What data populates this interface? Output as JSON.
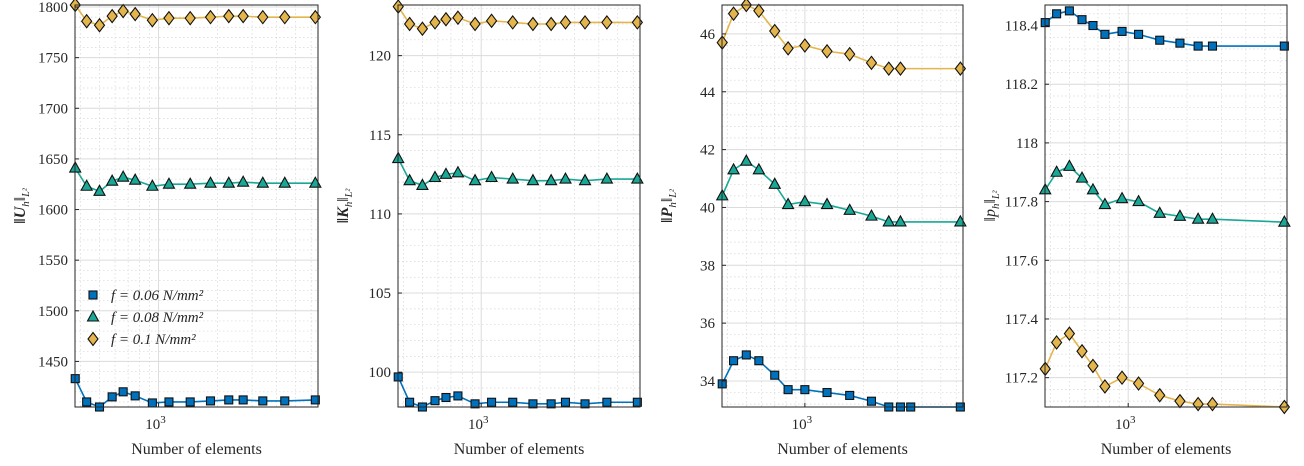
{
  "chart_data": [
    {
      "type": "line",
      "xscale": "log",
      "xlabel": "Number of elements",
      "ylabel": "‖U_h‖_{L²}",
      "ylabel_main": "‖U",
      "ylabel_sub": "h",
      "ylabel_tail": "‖",
      "ylabel_norm": "L²",
      "ylabel_bold": true,
      "xlim": [
        375,
        6500
      ],
      "ylim": [
        1405,
        1802
      ],
      "xticks": [
        {
          "value": 1000,
          "base": "10",
          "exp": "3"
        }
      ],
      "yticks": [
        1450,
        1500,
        1550,
        1600,
        1650,
        1700,
        1750,
        1800
      ],
      "grid": true,
      "legend": {
        "placement": "lower-left"
      },
      "x": [
        376,
        430,
        500,
        580,
        660,
        760,
        930,
        1130,
        1450,
        1840,
        2280,
        2700,
        3400,
        4400,
        6300
      ],
      "series": [
        {
          "name": "f = 0.06 N/mm²",
          "color": "#0072bd",
          "marker": "square",
          "values": [
            1433,
            1410,
            1405,
            1415,
            1420,
            1416,
            1409,
            1410,
            1410,
            1411,
            1412,
            1412,
            1411,
            1411,
            1412
          ]
        },
        {
          "name": "f = 0.08 N/mm²",
          "color": "#1aa896",
          "marker": "triangle",
          "values": [
            1641,
            1623,
            1618,
            1628,
            1632,
            1629,
            1623,
            1625,
            1625,
            1626,
            1626,
            1627,
            1626,
            1626,
            1626
          ]
        },
        {
          "name": "f = 0.1 N/mm²",
          "color": "#e4b54d",
          "marker": "diamond",
          "values": [
            1802,
            1786,
            1782,
            1791,
            1796,
            1793,
            1787,
            1789,
            1789,
            1790,
            1791,
            1791,
            1790,
            1790,
            1790
          ]
        }
      ]
    },
    {
      "type": "line",
      "xscale": "log",
      "xlabel": "Number of elements",
      "ylabel": "‖K_h‖_{L²}",
      "ylabel_main": "‖K",
      "ylabel_sub": "h",
      "ylabel_tail": "‖",
      "ylabel_norm": "L²",
      "ylabel_bold": true,
      "xlim": [
        375,
        6500
      ],
      "ylim": [
        97.8,
        123.2
      ],
      "xticks": [
        {
          "value": 1000,
          "base": "10",
          "exp": "3"
        }
      ],
      "yticks": [
        100,
        105,
        110,
        115,
        120
      ],
      "grid": true,
      "x": [
        376,
        430,
        500,
        580,
        660,
        760,
        930,
        1130,
        1450,
        1840,
        2280,
        2700,
        3400,
        4400,
        6300
      ],
      "series": [
        {
          "name": "f = 0.06 N/mm²",
          "color": "#0072bd",
          "marker": "square",
          "values": [
            99.7,
            98.1,
            97.8,
            98.2,
            98.4,
            98.5,
            98.0,
            98.1,
            98.1,
            98.0,
            98.0,
            98.1,
            98.0,
            98.1,
            98.1
          ]
        },
        {
          "name": "f = 0.08 N/mm²",
          "color": "#1aa896",
          "marker": "triangle",
          "values": [
            113.5,
            112.1,
            111.8,
            112.3,
            112.5,
            112.6,
            112.1,
            112.3,
            112.2,
            112.1,
            112.1,
            112.2,
            112.1,
            112.2,
            112.2
          ]
        },
        {
          "name": "f = 0.1 N/mm²",
          "color": "#e4b54d",
          "marker": "diamond",
          "values": [
            123.1,
            122.0,
            121.7,
            122.1,
            122.3,
            122.4,
            122.0,
            122.2,
            122.1,
            122.0,
            122.0,
            122.1,
            122.1,
            122.1,
            122.1
          ]
        }
      ]
    },
    {
      "type": "line",
      "xscale": "log",
      "xlabel": "Number of elements",
      "ylabel": "‖P_h‖_{L²}",
      "ylabel_main": "‖P",
      "ylabel_sub": "h",
      "ylabel_tail": "‖",
      "ylabel_norm": "L²",
      "ylabel_bold": true,
      "xlim": [
        375,
        6500
      ],
      "ylim": [
        33.1,
        47.0
      ],
      "xticks": [
        {
          "value": 1000,
          "base": "10",
          "exp": "3"
        }
      ],
      "yticks": [
        34,
        36,
        38,
        40,
        42,
        44,
        46
      ],
      "grid": true,
      "x": [
        376,
        430,
        500,
        580,
        700,
        820,
        1000,
        1300,
        1700,
        2200,
        2700,
        3100,
        3500,
        4400,
        6300
      ],
      "series": [
        {
          "name": "f = 0.06 N/mm²",
          "color": "#0072bd",
          "marker": "square",
          "values": [
            33.9,
            34.7,
            34.9,
            34.7,
            34.2,
            33.7,
            33.7,
            33.6,
            33.5,
            33.3,
            33.1,
            33.1,
            33.1,
            null,
            33.1
          ]
        },
        {
          "name": "f = 0.08 N/mm²",
          "color": "#1aa896",
          "marker": "triangle",
          "values": [
            40.4,
            41.3,
            41.6,
            41.3,
            40.8,
            40.1,
            40.2,
            40.1,
            39.9,
            39.7,
            39.5,
            39.5,
            null,
            null,
            39.5
          ]
        },
        {
          "name": "f = 0.1 N/mm²",
          "color": "#e4b54d",
          "marker": "diamond",
          "values": [
            45.7,
            46.7,
            47.0,
            46.8,
            46.1,
            45.5,
            45.6,
            45.4,
            45.3,
            45.0,
            44.8,
            44.8,
            null,
            null,
            44.8
          ]
        }
      ]
    },
    {
      "type": "line",
      "xscale": "log",
      "xlabel": "Number of elements",
      "ylabel": "‖p_h‖_{L²}",
      "ylabel_main": "‖p",
      "ylabel_sub": "h",
      "ylabel_tail": "‖",
      "ylabel_norm": "L²",
      "ylabel_bold": false,
      "xlim": [
        375,
        6500
      ],
      "ylim": [
        117.1,
        118.47
      ],
      "xticks": [
        {
          "value": 1000,
          "base": "10",
          "exp": "3"
        }
      ],
      "yticks": [
        117.2,
        117.4,
        117.6,
        117.8,
        118,
        118.2,
        118.4
      ],
      "ytick_labels": [
        "117.2",
        "117.4",
        "117.6",
        "117.8",
        "118",
        "118.2",
        "118.4"
      ],
      "grid": true,
      "x": [
        376,
        430,
        500,
        580,
        660,
        760,
        930,
        1130,
        1450,
        1840,
        2280,
        2700,
        3400,
        4400,
        6300
      ],
      "series": [
        {
          "name": "f = 0.06 N/mm²",
          "color": "#0072bd",
          "marker": "square",
          "values": [
            118.41,
            118.44,
            118.45,
            118.42,
            118.4,
            118.37,
            118.38,
            118.37,
            118.35,
            118.34,
            118.33,
            118.33,
            null,
            null,
            118.33
          ]
        },
        {
          "name": "f = 0.08 N/mm²",
          "color": "#1aa896",
          "marker": "triangle",
          "values": [
            117.84,
            117.9,
            117.92,
            117.88,
            117.84,
            117.79,
            117.81,
            117.8,
            117.76,
            117.75,
            117.74,
            117.74,
            null,
            null,
            117.73
          ]
        },
        {
          "name": "f = 0.1 N/mm²",
          "color": "#e4b54d",
          "marker": "diamond",
          "values": [
            117.23,
            117.32,
            117.35,
            117.29,
            117.24,
            117.17,
            117.2,
            117.18,
            117.14,
            117.12,
            117.11,
            117.11,
            null,
            null,
            117.1
          ]
        }
      ]
    }
  ]
}
